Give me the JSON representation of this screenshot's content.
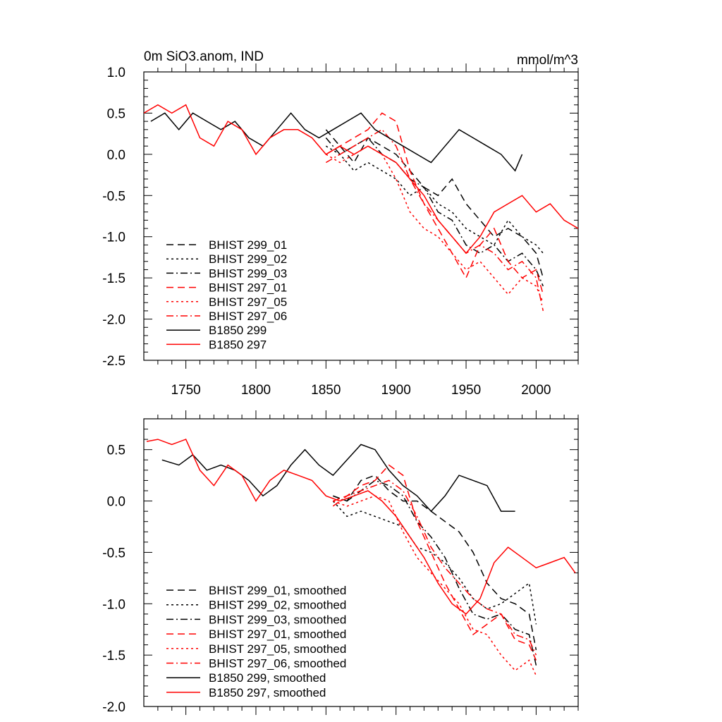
{
  "chart_data": [
    {
      "type": "line",
      "title_left": "0m SiO3.anom, IND",
      "title_right": "mmol/m^3",
      "xlim": [
        1720,
        2030
      ],
      "ylim": [
        -2.5,
        1.0
      ],
      "yticks": [
        1.0,
        0.5,
        0.0,
        -0.5,
        -1.0,
        -1.5,
        -2.0,
        -2.5
      ],
      "ytick_labels": [
        "1.0",
        "0.5",
        "0.0",
        "-0.5",
        "-1.0",
        "-1.5",
        "-2.0",
        "-2.5"
      ],
      "xticks": [
        1750,
        1800,
        1850,
        1900,
        1950,
        2000
      ],
      "xtick_labels": [
        "1750",
        "1800",
        "1850",
        "1900",
        "1950",
        "2000"
      ],
      "legend_position": "bottom-left",
      "series": [
        {
          "name": "BHIST 299_01",
          "color": "#000000",
          "dash": "dash",
          "x": [
            1850,
            1860,
            1870,
            1880,
            1890,
            1900,
            1910,
            1920,
            1930,
            1940,
            1950,
            1960,
            1970,
            1980,
            1990,
            2000,
            2005
          ],
          "y": [
            0.3,
            0.1,
            -0.1,
            0.2,
            0.1,
            0.0,
            -0.2,
            -0.4,
            -0.5,
            -0.3,
            -0.6,
            -0.8,
            -1.0,
            -0.9,
            -1.0,
            -1.2,
            -1.5
          ]
        },
        {
          "name": "BHIST 299_02",
          "color": "#000000",
          "dash": "dot",
          "x": [
            1850,
            1860,
            1870,
            1880,
            1890,
            1900,
            1910,
            1920,
            1930,
            1940,
            1950,
            1960,
            1970,
            1980,
            1990,
            2000,
            2005
          ],
          "y": [
            0.1,
            0.0,
            -0.2,
            -0.1,
            -0.2,
            -0.3,
            -0.5,
            -0.4,
            -0.6,
            -0.7,
            -0.9,
            -1.0,
            -1.1,
            -0.8,
            -1.0,
            -1.1,
            -1.2
          ]
        },
        {
          "name": "BHIST 299_03",
          "color": "#000000",
          "dash": "dashdot",
          "x": [
            1850,
            1860,
            1870,
            1880,
            1890,
            1900,
            1910,
            1920,
            1930,
            1940,
            1950,
            1960,
            1970,
            1980,
            1990,
            2000,
            2005
          ],
          "y": [
            0.2,
            0.0,
            0.1,
            0.2,
            0.0,
            -0.1,
            -0.3,
            -0.4,
            -0.7,
            -0.8,
            -1.1,
            -1.2,
            -1.1,
            -1.3,
            -1.2,
            -1.4,
            -1.6
          ]
        },
        {
          "name": "BHIST 297_01",
          "color": "#ff0000",
          "dash": "dash",
          "x": [
            1850,
            1860,
            1870,
            1880,
            1890,
            1900,
            1910,
            1920,
            1930,
            1940,
            1950,
            1960,
            1970,
            1980,
            1990,
            2000,
            2005
          ],
          "y": [
            0.0,
            0.1,
            0.2,
            0.3,
            0.5,
            0.4,
            -0.2,
            -0.6,
            -0.9,
            -1.2,
            -1.5,
            -1.1,
            -0.9,
            -1.3,
            -1.5,
            -1.4,
            -1.7
          ]
        },
        {
          "name": "BHIST 297_05",
          "color": "#ff0000",
          "dash": "dot",
          "x": [
            1850,
            1860,
            1870,
            1880,
            1890,
            1900,
            1910,
            1920,
            1930,
            1940,
            1950,
            1960,
            1970,
            1980,
            1990,
            2000,
            2005
          ],
          "y": [
            0.0,
            -0.1,
            0.0,
            0.1,
            0.0,
            -0.3,
            -0.7,
            -0.9,
            -1.0,
            -1.2,
            -1.4,
            -1.3,
            -1.5,
            -1.7,
            -1.5,
            -1.6,
            -1.8
          ]
        },
        {
          "name": "BHIST 297_06",
          "color": "#ff0000",
          "dash": "dashdot",
          "x": [
            1850,
            1860,
            1870,
            1880,
            1890,
            1900,
            1910,
            1920,
            1930,
            1940,
            1950,
            1960,
            1970,
            1980,
            1990,
            2000,
            2005
          ],
          "y": [
            -0.1,
            0.0,
            0.1,
            0.2,
            0.3,
            0.1,
            -0.3,
            -0.6,
            -0.8,
            -1.0,
            -1.2,
            -1.1,
            -1.2,
            -1.4,
            -1.3,
            -1.5,
            -1.9
          ]
        },
        {
          "name": "B1850 299",
          "color": "#000000",
          "dash": "solid",
          "x": [
            1725,
            1735,
            1745,
            1755,
            1765,
            1775,
            1785,
            1795,
            1805,
            1815,
            1825,
            1835,
            1845,
            1855,
            1865,
            1875,
            1885,
            1895,
            1905,
            1915,
            1925,
            1935,
            1945,
            1955,
            1965,
            1975,
            1985,
            1990
          ],
          "y": [
            0.4,
            0.5,
            0.3,
            0.5,
            0.4,
            0.3,
            0.4,
            0.2,
            0.1,
            0.3,
            0.5,
            0.3,
            0.2,
            0.3,
            0.4,
            0.5,
            0.3,
            0.2,
            0.1,
            0.0,
            -0.1,
            0.1,
            0.3,
            0.2,
            0.1,
            0.0,
            -0.2,
            0.0
          ]
        },
        {
          "name": "B1850 297",
          "color": "#ff0000",
          "dash": "solid",
          "x": [
            1720,
            1730,
            1740,
            1750,
            1760,
            1770,
            1780,
            1790,
            1800,
            1810,
            1820,
            1830,
            1840,
            1850,
            1860,
            1870,
            1880,
            1890,
            1900,
            1910,
            1920,
            1930,
            1940,
            1950,
            1960,
            1970,
            1980,
            1990,
            2000,
            2010,
            2020,
            2030
          ],
          "y": [
            0.5,
            0.6,
            0.5,
            0.6,
            0.2,
            0.1,
            0.4,
            0.3,
            0.0,
            0.2,
            0.3,
            0.3,
            0.2,
            0.0,
            0.1,
            0.0,
            0.1,
            0.0,
            -0.1,
            -0.3,
            -0.5,
            -0.8,
            -1.0,
            -1.2,
            -1.0,
            -0.7,
            -0.6,
            -0.5,
            -0.7,
            -0.6,
            -0.8,
            -0.9
          ]
        }
      ]
    },
    {
      "type": "line",
      "xlim": [
        1720,
        2030
      ],
      "ylim": [
        -2.0,
        0.8
      ],
      "yticks": [
        0.5,
        0.0,
        -0.5,
        -1.0,
        -1.5,
        -2.0
      ],
      "ytick_labels": [
        "0.5",
        "0.0",
        "-0.5",
        "-1.0",
        "-1.5",
        "-2.0"
      ],
      "xticks": [
        1750,
        1800,
        1850,
        1900,
        1950,
        2000
      ],
      "legend_position": "bottom-left",
      "series": [
        {
          "name": "BHIST 299_01, smoothed",
          "color": "#000000",
          "dash": "dash",
          "x": [
            1855,
            1865,
            1875,
            1885,
            1895,
            1905,
            1915,
            1925,
            1935,
            1945,
            1955,
            1965,
            1975,
            1985,
            1995,
            2000
          ],
          "y": [
            0.05,
            0.0,
            0.2,
            0.25,
            0.1,
            0.0,
            0.0,
            -0.1,
            -0.2,
            -0.3,
            -0.5,
            -0.8,
            -0.95,
            -1.0,
            -1.1,
            -1.45
          ]
        },
        {
          "name": "BHIST 299_02, smoothed",
          "color": "#000000",
          "dash": "dot",
          "x": [
            1855,
            1865,
            1875,
            1885,
            1895,
            1905,
            1915,
            1925,
            1935,
            1945,
            1955,
            1965,
            1975,
            1985,
            1995,
            2000
          ],
          "y": [
            0.0,
            -0.15,
            -0.1,
            -0.15,
            -0.2,
            -0.25,
            -0.45,
            -0.5,
            -0.6,
            -0.75,
            -0.95,
            -1.05,
            -1.0,
            -0.9,
            -0.8,
            -1.2
          ]
        },
        {
          "name": "BHIST 299_03, smoothed",
          "color": "#000000",
          "dash": "dashdot",
          "x": [
            1855,
            1865,
            1875,
            1885,
            1895,
            1905,
            1915,
            1925,
            1935,
            1945,
            1955,
            1965,
            1975,
            1985,
            1995,
            2000
          ],
          "y": [
            0.05,
            0.0,
            0.1,
            0.2,
            0.15,
            0.05,
            -0.2,
            -0.35,
            -0.55,
            -0.85,
            -1.1,
            -1.15,
            -1.1,
            -1.25,
            -1.3,
            -1.6
          ]
        },
        {
          "name": "BHIST 297_01, smoothed",
          "color": "#ff0000",
          "dash": "dash",
          "x": [
            1855,
            1865,
            1875,
            1885,
            1895,
            1905,
            1915,
            1925,
            1935,
            1945,
            1955,
            1965,
            1975,
            1985,
            1995,
            2000
          ],
          "y": [
            0.0,
            0.05,
            0.15,
            0.2,
            0.35,
            0.25,
            -0.2,
            -0.5,
            -0.8,
            -1.05,
            -1.3,
            -1.2,
            -1.1,
            -1.35,
            -1.4,
            -1.55
          ]
        },
        {
          "name": "BHIST 297_05, smoothed",
          "color": "#ff0000",
          "dash": "dot",
          "x": [
            1855,
            1865,
            1875,
            1885,
            1895,
            1905,
            1915,
            1925,
            1935,
            1945,
            1955,
            1965,
            1975,
            1985,
            1995,
            2000
          ],
          "y": [
            0.0,
            -0.05,
            0.0,
            0.05,
            0.0,
            -0.3,
            -0.55,
            -0.7,
            -0.85,
            -1.0,
            -1.25,
            -1.3,
            -1.5,
            -1.65,
            -1.55,
            -1.7
          ]
        },
        {
          "name": "BHIST 297_06, smoothed",
          "color": "#ff0000",
          "dash": "dashdot",
          "x": [
            1855,
            1865,
            1875,
            1885,
            1895,
            1905,
            1915,
            1925,
            1935,
            1945,
            1955,
            1965,
            1975,
            1985,
            1995,
            2000
          ],
          "y": [
            -0.05,
            0.05,
            0.1,
            0.15,
            0.2,
            0.1,
            -0.15,
            -0.45,
            -0.65,
            -0.8,
            -0.95,
            -1.05,
            -1.1,
            -1.3,
            -1.35,
            -1.5
          ]
        },
        {
          "name": "B1850 299, smoothed",
          "color": "#000000",
          "dash": "solid",
          "x": [
            1733,
            1745,
            1755,
            1765,
            1775,
            1785,
            1795,
            1805,
            1815,
            1825,
            1835,
            1845,
            1855,
            1865,
            1875,
            1885,
            1895,
            1905,
            1915,
            1925,
            1935,
            1945,
            1955,
            1965,
            1975,
            1985
          ],
          "y": [
            0.4,
            0.35,
            0.45,
            0.3,
            0.35,
            0.3,
            0.2,
            0.05,
            0.15,
            0.35,
            0.5,
            0.35,
            0.25,
            0.4,
            0.55,
            0.5,
            0.3,
            0.15,
            0.05,
            -0.1,
            0.05,
            0.25,
            0.2,
            0.15,
            -0.1,
            -0.1
          ]
        },
        {
          "name": "B1850 297, smoothed",
          "color": "#ff0000",
          "dash": "solid",
          "x": [
            1722,
            1730,
            1740,
            1750,
            1760,
            1770,
            1780,
            1790,
            1800,
            1810,
            1820,
            1830,
            1840,
            1850,
            1860,
            1870,
            1880,
            1890,
            1900,
            1910,
            1920,
            1930,
            1940,
            1950,
            1960,
            1970,
            1980,
            1990,
            2000,
            2010,
            2020,
            2028
          ],
          "y": [
            0.58,
            0.6,
            0.55,
            0.6,
            0.3,
            0.15,
            0.35,
            0.25,
            0.0,
            0.2,
            0.3,
            0.25,
            0.2,
            0.05,
            0.0,
            0.05,
            0.1,
            0.0,
            -0.15,
            -0.35,
            -0.55,
            -0.8,
            -1.0,
            -1.1,
            -0.95,
            -0.6,
            -0.45,
            -0.55,
            -0.65,
            -0.6,
            -0.55,
            -0.7
          ]
        }
      ]
    }
  ]
}
